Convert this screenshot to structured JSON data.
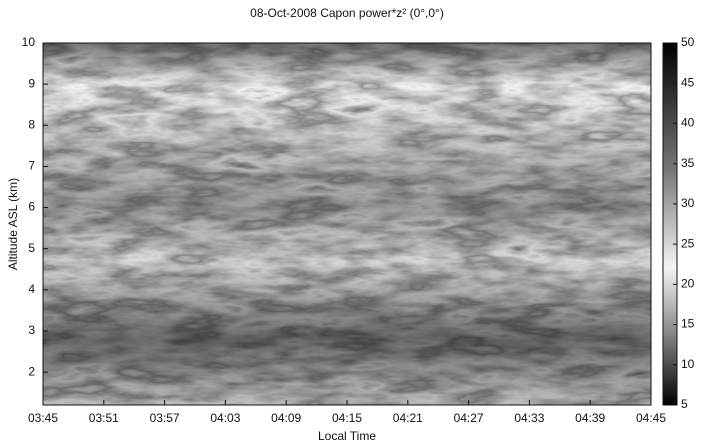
{
  "chart_data": {
    "type": "heatmap",
    "title": "08-Oct-2008 Capon power*z² (0°,0°)",
    "xlabel": "Local Time",
    "ylabel": "Altitude ASL (km)",
    "xlim": [
      225,
      285
    ],
    "xticks": [
      {
        "value": 225,
        "label": "03:45"
      },
      {
        "value": 231,
        "label": "03:51"
      },
      {
        "value": 237,
        "label": "03:57"
      },
      {
        "value": 243,
        "label": "04:03"
      },
      {
        "value": 249,
        "label": "04:09"
      },
      {
        "value": 255,
        "label": "04:15"
      },
      {
        "value": 261,
        "label": "04:21"
      },
      {
        "value": 267,
        "label": "04:27"
      },
      {
        "value": 273,
        "label": "04:33"
      },
      {
        "value": 279,
        "label": "04:39"
      },
      {
        "value": 285,
        "label": "04:45"
      }
    ],
    "ylim": [
      1.2,
      10
    ],
    "yticks": [
      2,
      3,
      4,
      5,
      6,
      7,
      8,
      9,
      10
    ],
    "clim": [
      5,
      50
    ],
    "cticks": [
      5,
      10,
      15,
      20,
      25,
      30,
      35,
      40,
      45,
      50
    ]
  }
}
